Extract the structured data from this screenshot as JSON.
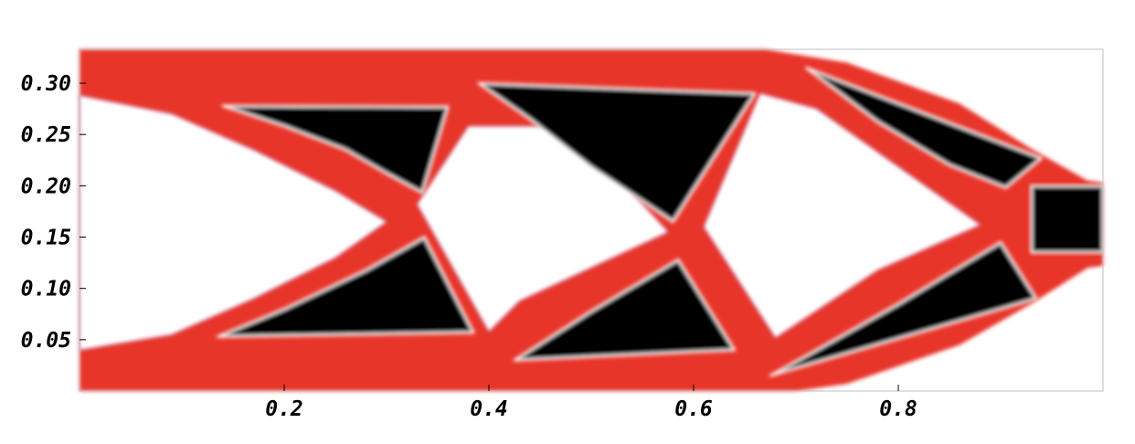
{
  "chart_data": {
    "type": "heatmap",
    "title": "",
    "xlabel": "",
    "ylabel": "",
    "xlim": [
      0,
      1
    ],
    "ylim": [
      0,
      0.333
    ],
    "x_ticks": [
      {
        "value": 0.2,
        "label": "0.2"
      },
      {
        "value": 0.4,
        "label": "0.4"
      },
      {
        "value": 0.6,
        "label": "0.6"
      },
      {
        "value": 0.8,
        "label": "0.8"
      }
    ],
    "y_ticks": [
      {
        "value": 0.05,
        "label": "0.05"
      },
      {
        "value": 0.1,
        "label": "0.10"
      },
      {
        "value": 0.15,
        "label": "0.15"
      },
      {
        "value": 0.2,
        "label": "0.20"
      },
      {
        "value": 0.25,
        "label": "0.25"
      },
      {
        "value": 0.3,
        "label": "0.30"
      }
    ],
    "colors": {
      "material": "#e8352a",
      "void": "#ffffff",
      "hole": "#000000",
      "edge": "#3a3aff",
      "frame": "#bfbfbf"
    },
    "solid_domain": [
      [
        0,
        0.333
      ],
      [
        0.67,
        0.333
      ],
      [
        0.75,
        0.32
      ],
      [
        0.86,
        0.28
      ],
      [
        0.93,
        0.236
      ],
      [
        0.985,
        0.205
      ],
      [
        1,
        0.203
      ],
      [
        1,
        0.122
      ],
      [
        0.985,
        0.12
      ],
      [
        0.93,
        0.085
      ],
      [
        0.86,
        0.045
      ],
      [
        0.75,
        0.007
      ],
      [
        0.7,
        0
      ],
      [
        0,
        0
      ]
    ],
    "void_regions": [
      [
        [
          0,
          0.288
        ],
        [
          0.09,
          0.27
        ],
        [
          0.17,
          0.235
        ],
        [
          0.25,
          0.195
        ],
        [
          0.3,
          0.165
        ],
        [
          0.25,
          0.13
        ],
        [
          0.17,
          0.09
        ],
        [
          0.09,
          0.055
        ],
        [
          0,
          0.04
        ]
      ],
      [
        [
          0.38,
          0.258
        ],
        [
          0.33,
          0.182
        ],
        [
          0.4,
          0.058
        ],
        [
          0.43,
          0.088
        ],
        [
          0.575,
          0.155
        ],
        [
          0.48,
          0.258
        ]
      ],
      [
        [
          0.665,
          0.29
        ],
        [
          0.72,
          0.275
        ],
        [
          0.88,
          0.162
        ],
        [
          0.78,
          0.118
        ],
        [
          0.68,
          0.052
        ],
        [
          0.61,
          0.16
        ]
      ]
    ],
    "hole_regions": [
      [
        [
          0.14,
          0.278
        ],
        [
          0.36,
          0.277
        ],
        [
          0.335,
          0.193
        ],
        [
          0.3,
          0.212
        ],
        [
          0.26,
          0.235
        ],
        [
          0.2,
          0.258
        ]
      ],
      [
        [
          0.39,
          0.3
        ],
        [
          0.66,
          0.29
        ],
        [
          0.58,
          0.165
        ],
        [
          0.5,
          0.218
        ],
        [
          0.44,
          0.265
        ]
      ],
      [
        [
          0.71,
          0.315
        ],
        [
          0.94,
          0.227
        ],
        [
          0.905,
          0.198
        ],
        [
          0.85,
          0.22
        ],
        [
          0.78,
          0.262
        ]
      ],
      [
        [
          0.135,
          0.053
        ],
        [
          0.385,
          0.057
        ],
        [
          0.337,
          0.15
        ],
        [
          0.28,
          0.118
        ],
        [
          0.2,
          0.08
        ]
      ],
      [
        [
          0.425,
          0.03
        ],
        [
          0.64,
          0.04
        ],
        [
          0.585,
          0.128
        ],
        [
          0.5,
          0.078
        ]
      ],
      [
        [
          0.675,
          0.015
        ],
        [
          0.935,
          0.09
        ],
        [
          0.9,
          0.145
        ],
        [
          0.8,
          0.085
        ],
        [
          0.72,
          0.04
        ]
      ],
      [
        [
          0.93,
          0.2
        ],
        [
          1,
          0.2
        ],
        [
          1,
          0.135
        ],
        [
          0.93,
          0.135
        ]
      ]
    ]
  }
}
